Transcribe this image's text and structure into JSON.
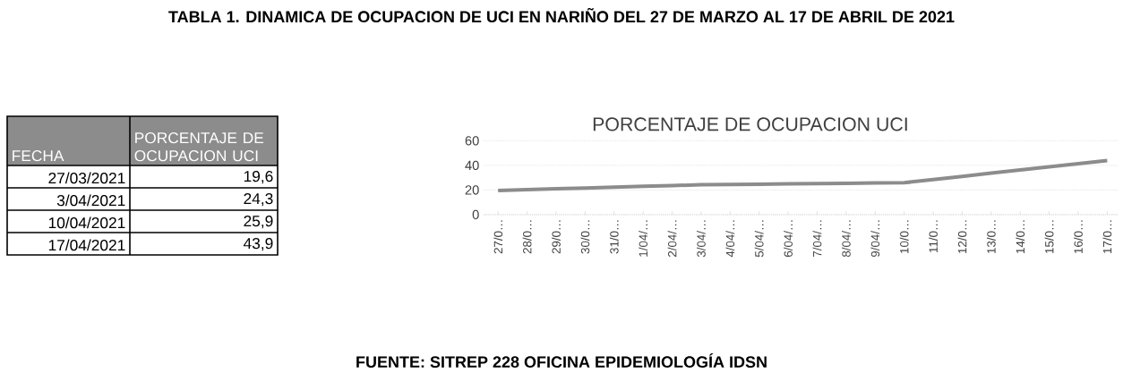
{
  "chart_data": [
    {
      "type": "other",
      "title": "TABLA 1. DINAMICA  DE OCUPACION DE UCI EN NARIÑO  DEL 27 DE MARZO AL 17 DE ABRIL DE 2021",
      "annotations": [
        "FECHA",
        "PORCENTAJE DE OCUPACION UCI",
        "27/03/2021",
        "19,6",
        "3/04/2021",
        "24,3",
        "10/04/2021",
        "25,9",
        "17/04/2021",
        "43,9",
        "FUENTE: SITREP 228 OFICINA EPIDEMIOLOGÍA IDSN"
      ]
    },
    {
      "type": "line",
      "title": "PORCENTAJE DE OCUPACION UCI",
      "categories": [
        "27/0…",
        "28/0…",
        "29/0…",
        "30/0…",
        "31/0…",
        "1/04/…",
        "2/04/…",
        "3/04/…",
        "4/04/…",
        "5/04/…",
        "6/04/…",
        "7/04/…",
        "8/04/…",
        "9/04/…",
        "10/0…",
        "11/0…",
        "12/0…",
        "13/0…",
        "14/0…",
        "15/0…",
        "16/0…",
        "17/0…"
      ],
      "values": [
        19.6,
        20.3,
        21.0,
        21.6,
        22.3,
        23.0,
        23.6,
        24.3,
        24.5,
        24.7,
        25.0,
        25.2,
        25.4,
        25.7,
        25.9,
        28.5,
        31.0,
        33.7,
        36.3,
        38.9,
        41.4,
        43.9
      ],
      "color": "#8c8c8c",
      "ylim": [
        0,
        60
      ],
      "yticks": [
        0,
        20,
        40,
        60
      ],
      "grid": "y"
    }
  ]
}
